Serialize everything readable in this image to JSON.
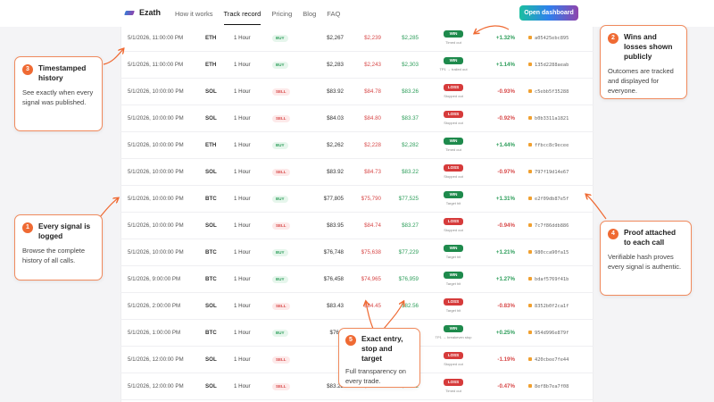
{
  "nav": {
    "brand": "Ezath",
    "links": [
      "How it works",
      "Track record",
      "Pricing",
      "Blog",
      "FAQ"
    ],
    "active": "Track record",
    "cta_label": "Open dashboard"
  },
  "rows": [
    {
      "time": "5/1/2026, 11:00:00 PM",
      "symbol": "ETH",
      "timeframe": "1 Hour",
      "side": "BUY",
      "entry": "$2,267",
      "stop": "$2,239",
      "target": "$2,285",
      "result": "WIN",
      "note": "Timed out",
      "pnl": "+1.32%",
      "hash": "a05425ebc895"
    },
    {
      "time": "5/1/2026, 11:00:00 PM",
      "symbol": "ETH",
      "timeframe": "1 Hour",
      "side": "BUY",
      "entry": "$2,283",
      "stop": "$2,243",
      "target": "$2,303",
      "result": "WIN",
      "note": "TP1 → trailed out",
      "pnl": "+1.14%",
      "hash": "135d2288aeab"
    },
    {
      "time": "5/1/2026, 10:00:00 PM",
      "symbol": "SOL",
      "timeframe": "1 Hour",
      "side": "SELL",
      "entry": "$83.92",
      "stop": "$84.78",
      "target": "$83.26",
      "result": "LOSS",
      "note": "Stopped out",
      "pnl": "-0.93%",
      "hash": "c5ebb5f35288"
    },
    {
      "time": "5/1/2026, 10:00:00 PM",
      "symbol": "SOL",
      "timeframe": "1 Hour",
      "side": "SELL",
      "entry": "$84.03",
      "stop": "$84.80",
      "target": "$83.37",
      "result": "LOSS",
      "note": "Stopped out",
      "pnl": "-0.92%",
      "hash": "b0b3311a1821"
    },
    {
      "time": "5/1/2026, 10:00:00 PM",
      "symbol": "ETH",
      "timeframe": "1 Hour",
      "side": "BUY",
      "entry": "$2,262",
      "stop": "$2,228",
      "target": "$2,282",
      "result": "WIN",
      "note": "Timed out",
      "pnl": "+1.44%",
      "hash": "ffbcc8c9ecee"
    },
    {
      "time": "5/1/2026, 10:00:00 PM",
      "symbol": "SOL",
      "timeframe": "1 Hour",
      "side": "SELL",
      "entry": "$83.92",
      "stop": "$84.73",
      "target": "$83.22",
      "result": "LOSS",
      "note": "Stopped out",
      "pnl": "-0.97%",
      "hash": "797f19d14e67"
    },
    {
      "time": "5/1/2026, 10:00:00 PM",
      "symbol": "BTC",
      "timeframe": "1 Hour",
      "side": "BUY",
      "entry": "$77,805",
      "stop": "$75,790",
      "target": "$77,525",
      "result": "WIN",
      "note": "Target hit",
      "pnl": "+1.31%",
      "hash": "e2f09db87e5f"
    },
    {
      "time": "5/1/2026, 10:00:00 PM",
      "symbol": "SOL",
      "timeframe": "1 Hour",
      "side": "SELL",
      "entry": "$83.95",
      "stop": "$84.74",
      "target": "$83.27",
      "result": "LOSS",
      "note": "Stopped out",
      "pnl": "-0.94%",
      "hash": "7c7f86ddb886"
    },
    {
      "time": "5/1/2026, 10:00:00 PM",
      "symbol": "BTC",
      "timeframe": "1 Hour",
      "side": "BUY",
      "entry": "$76,748",
      "stop": "$75,638",
      "target": "$77,229",
      "result": "WIN",
      "note": "Target hit",
      "pnl": "+1.21%",
      "hash": "980cca90fa15"
    },
    {
      "time": "5/1/2026, 9:00:00 PM",
      "symbol": "BTC",
      "timeframe": "1 Hour",
      "side": "BUY",
      "entry": "$76,458",
      "stop": "$74,965",
      "target": "$76,959",
      "result": "WIN",
      "note": "Target hit",
      "pnl": "+1.27%",
      "hash": "bdaf5769f41b"
    },
    {
      "time": "5/1/2026, 2:00:00 PM",
      "symbol": "SOL",
      "timeframe": "1 Hour",
      "side": "SELL",
      "entry": "$83.43",
      "stop": "$84.45",
      "target": "$82.56",
      "result": "LOSS",
      "note": "Target hit",
      "pnl": "-0.83%",
      "hash": "8352b0f2ca1f"
    },
    {
      "time": "5/1/2026, 1:00:00 PM",
      "symbol": "BTC",
      "timeframe": "1 Hour",
      "side": "BUY",
      "entry": "$76,6",
      "stop": "",
      "target": "",
      "result": "WIN",
      "note": "TP1 → breakeven stop",
      "pnl": "+0.25%",
      "hash": "954d996e879f"
    },
    {
      "time": "5/1/2026, 12:00:00 PM",
      "symbol": "SOL",
      "timeframe": "1 Hour",
      "side": "SELL",
      "entry": "",
      "stop": "",
      "target": "",
      "result": "LOSS",
      "note": "Stopped out",
      "pnl": "-1.19%",
      "hash": "420cbee7fe44"
    },
    {
      "time": "5/1/2026, 12:00:00 PM",
      "symbol": "SOL",
      "timeframe": "1 Hour",
      "side": "SELL",
      "entry": "$83.28",
      "stop": "$84.29",
      "target": "$82.42",
      "result": "LOSS",
      "note": "Timed out",
      "pnl": "-0.47%",
      "hash": "8ef8b7ea7f08"
    }
  ],
  "callouts": {
    "c1": {
      "num": "1",
      "title": "Every signal is logged",
      "text": "Browse the complete history of all calls."
    },
    "c2": {
      "num": "2",
      "title": "Wins and losses shown publicly",
      "text": "Outcomes are tracked and displayed for everyone."
    },
    "c3": {
      "num": "3",
      "title": "Timestamped history",
      "text": "See exactly when every signal was published."
    },
    "c4": {
      "num": "4",
      "title": "Proof attached to each call",
      "text": "Verifiable hash proves every signal is authentic."
    },
    "c5": {
      "num": "5",
      "title": "Exact entry, stop and target",
      "text": "Full transparency on every trade."
    }
  },
  "colors": {
    "accent": "#ef6a33",
    "win": "#1e8a4c",
    "loss": "#d63b3b",
    "positive": "#2e9e5b",
    "negative": "#d84a4a"
  },
  "icons": {
    "brand": "brand-logo-icon",
    "lock": "lock-icon"
  }
}
